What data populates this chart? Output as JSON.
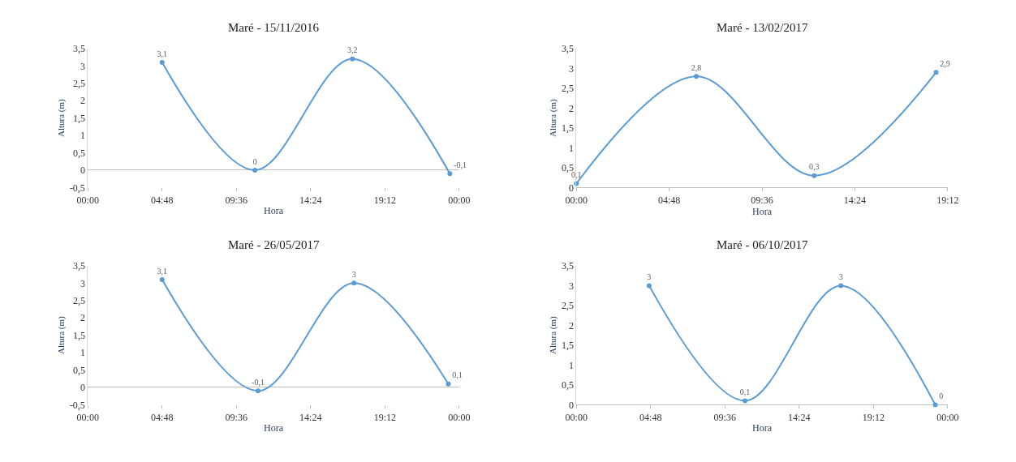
{
  "chart_data": [
    {
      "type": "line",
      "title": "Maré - 15/11/2016",
      "xlabel": "Hora",
      "ylabel": "Altura (m)",
      "marker": "circle",
      "xlim": [
        0,
        24
      ],
      "xticks": [
        {
          "value": 0,
          "label": "00:00"
        },
        {
          "value": 4.8,
          "label": "04:48"
        },
        {
          "value": 9.6,
          "label": "09:36"
        },
        {
          "value": 14.4,
          "label": "14:24"
        },
        {
          "value": 19.2,
          "label": "19:12"
        },
        {
          "value": 24,
          "label": "00:00"
        }
      ],
      "ylim": [
        -0.5,
        3.5
      ],
      "yticks": [
        {
          "value": -0.5,
          "label": "-0,5"
        },
        0,
        {
          "value": 0.5,
          "label": "0,5"
        },
        1,
        {
          "value": 1.5,
          "label": "1,5"
        },
        2,
        {
          "value": 2.5,
          "label": "2,5"
        },
        3,
        {
          "value": 3.5,
          "label": "3,5"
        }
      ],
      "series": [
        {
          "color": "#5b9bd5",
          "x": [
            4.8,
            10.8,
            17.1,
            23.4
          ],
          "values": [
            3.1,
            0,
            3.2,
            -0.1
          ],
          "value_labels": [
            "3,1",
            "0",
            "3,2",
            "-0,1"
          ]
        }
      ]
    },
    {
      "type": "line",
      "title": "Maré - 13/02/2017",
      "xlabel": "Hora",
      "ylabel": "Altura (m)",
      "marker": "circle",
      "xlim": [
        0,
        19.2
      ],
      "xticks": [
        {
          "value": 0,
          "label": "00:00"
        },
        {
          "value": 4.8,
          "label": "04:48"
        },
        {
          "value": 9.6,
          "label": "09:36"
        },
        {
          "value": 14.4,
          "label": "14:24"
        },
        {
          "value": 19.2,
          "label": "19:12"
        }
      ],
      "ylim": [
        0,
        3.5
      ],
      "yticks": [
        0,
        {
          "value": 0.5,
          "label": "0,5"
        },
        1,
        {
          "value": 1.5,
          "label": "1,5"
        },
        2,
        {
          "value": 2.5,
          "label": "2,5"
        },
        3,
        {
          "value": 3.5,
          "label": "3,5"
        }
      ],
      "series": [
        {
          "color": "#5b9bd5",
          "x": [
            0,
            6.2,
            12.3,
            18.6
          ],
          "values": [
            0.1,
            2.8,
            0.3,
            2.9
          ],
          "value_labels": [
            "0,1",
            "2,8",
            "0,3",
            "2,9"
          ]
        }
      ]
    },
    {
      "type": "line",
      "title": "Maré - 26/05/2017",
      "xlabel": "Hora",
      "ylabel": "Altura (m)",
      "marker": "circle",
      "xlim": [
        0,
        24
      ],
      "xticks": [
        {
          "value": 0,
          "label": "00:00"
        },
        {
          "value": 4.8,
          "label": "04:48"
        },
        {
          "value": 9.6,
          "label": "09:36"
        },
        {
          "value": 14.4,
          "label": "14:24"
        },
        {
          "value": 19.2,
          "label": "19:12"
        },
        {
          "value": 24,
          "label": "00:00"
        }
      ],
      "ylim": [
        -0.5,
        3.5
      ],
      "yticks": [
        {
          "value": -0.5,
          "label": "-0,5"
        },
        0,
        {
          "value": 0.5,
          "label": "0,5"
        },
        1,
        {
          "value": 1.5,
          "label": "1,5"
        },
        2,
        {
          "value": 2.5,
          "label": "2,5"
        },
        3,
        {
          "value": 3.5,
          "label": "3,5"
        }
      ],
      "series": [
        {
          "color": "#5b9bd5",
          "x": [
            4.8,
            11.0,
            17.2,
            23.3
          ],
          "values": [
            3.1,
            -0.1,
            3,
            0.1
          ],
          "value_labels": [
            "3,1",
            "-0,1",
            "3",
            "0,1"
          ]
        }
      ]
    },
    {
      "type": "line",
      "title": "Maré - 06/10/2017",
      "xlabel": "Hora",
      "ylabel": "Altura (m)",
      "marker": "circle",
      "xlim": [
        0,
        24
      ],
      "xticks": [
        {
          "value": 0,
          "label": "00:00"
        },
        {
          "value": 4.8,
          "label": "04:48"
        },
        {
          "value": 9.6,
          "label": "09:36"
        },
        {
          "value": 14.4,
          "label": "14:24"
        },
        {
          "value": 19.2,
          "label": "19:12"
        },
        {
          "value": 24,
          "label": "00:00"
        }
      ],
      "ylim": [
        0,
        3.5
      ],
      "yticks": [
        0,
        {
          "value": 0.5,
          "label": "0,5"
        },
        1,
        {
          "value": 1.5,
          "label": "1,5"
        },
        2,
        {
          "value": 2.5,
          "label": "2,5"
        },
        3,
        {
          "value": 3.5,
          "label": "3,5"
        }
      ],
      "series": [
        {
          "color": "#5b9bd5",
          "x": [
            4.7,
            10.9,
            17.1,
            23.2
          ],
          "values": [
            3,
            0.1,
            3,
            0
          ],
          "value_labels": [
            "3",
            "0,1",
            "3",
            "0"
          ]
        }
      ]
    }
  ]
}
